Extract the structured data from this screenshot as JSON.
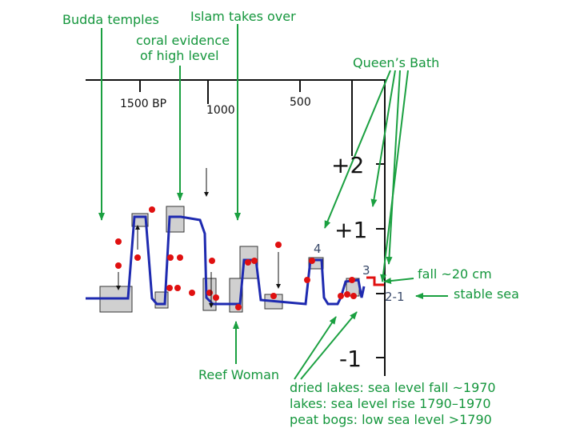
{
  "annotations": {
    "budda": "Budda temples",
    "islam": "Islam takes over",
    "coral_1": "coral evidence",
    "coral_2": "of high level",
    "queens_bath": "Queen’s Bath",
    "fall": "fall ~20 cm",
    "stable": "stable sea",
    "reef_woman": "Reef Woman",
    "dried_lakes": "dried lakes: sea level fall ~1970",
    "lakes": "lakes: sea level rise 1790–1970",
    "peat_bogs": "peat bogs: low sea level >1790"
  },
  "x_labels": [
    "1500 BP",
    "1000",
    "500"
  ],
  "y_labels": [
    "+2",
    "+1",
    "-1"
  ],
  "stage_labels": [
    "4",
    "3",
    "2-1"
  ]
}
